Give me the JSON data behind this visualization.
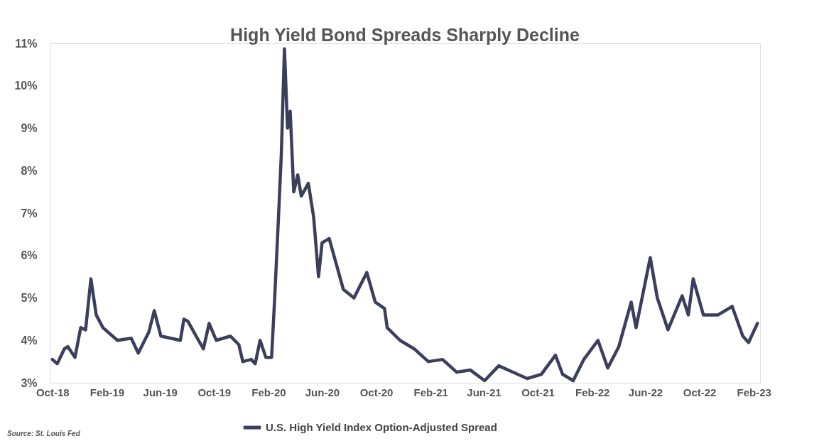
{
  "chart_data": {
    "type": "line",
    "title": "High Yield Bond Spreads Sharply Decline",
    "x": [
      "2018-10-01",
      "2018-10-12",
      "2018-10-28",
      "2018-11-05",
      "2018-11-21",
      "2018-12-04",
      "2018-12-15",
      "2018-12-27",
      "2019-01-08",
      "2019-01-23",
      "2019-02-25",
      "2019-03-28",
      "2019-04-13",
      "2019-05-07",
      "2019-05-19",
      "2019-06-03",
      "2019-07-17",
      "2019-07-25",
      "2019-08-03",
      "2019-08-27",
      "2019-09-07",
      "2019-09-20",
      "2019-10-06",
      "2019-11-07",
      "2019-11-26",
      "2019-12-05",
      "2019-12-24",
      "2020-01-02",
      "2020-01-13",
      "2020-01-26",
      "2020-02-08",
      "2020-02-15",
      "2020-02-24",
      "2020-03-01",
      "2020-03-08",
      "2020-03-15",
      "2020-03-21",
      "2020-03-29",
      "2020-04-07",
      "2020-04-15",
      "2020-05-01",
      "2020-05-13",
      "2020-05-24",
      "2020-06-01",
      "2020-06-17",
      "2020-07-03",
      "2020-07-19",
      "2020-08-12",
      "2020-09-10",
      "2020-09-29",
      "2020-10-20",
      "2020-10-26",
      "2020-11-24",
      "2020-12-26",
      "2021-01-27",
      "2021-02-28",
      "2021-04-01",
      "2021-05-02",
      "2021-06-03",
      "2021-07-05",
      "2021-08-06",
      "2021-09-07",
      "2021-10-09",
      "2021-11-10",
      "2021-11-26",
      "2021-12-20",
      "2022-01-13",
      "2022-02-14",
      "2022-03-08",
      "2022-04-02",
      "2022-04-30",
      "2022-05-11",
      "2022-06-12",
      "2022-06-28",
      "2022-07-22",
      "2022-08-23",
      "2022-09-06",
      "2022-09-17",
      "2022-10-10",
      "2022-11-12",
      "2022-12-14",
      "2023-01-07",
      "2023-01-20",
      "2023-02-09"
    ],
    "series": [
      {
        "name": "U.S. High Yield Index Option-Adjusted Spread",
        "color": "#3b3f5c",
        "values": [
          3.55,
          3.45,
          3.8,
          3.85,
          3.6,
          4.3,
          4.25,
          5.45,
          4.6,
          4.3,
          4.0,
          4.05,
          3.7,
          4.2,
          4.7,
          4.1,
          4.0,
          4.5,
          4.45,
          4.0,
          3.8,
          4.4,
          4.0,
          4.1,
          3.9,
          3.5,
          3.55,
          3.45,
          4.0,
          3.6,
          3.6,
          5.0,
          7.0,
          8.4,
          10.87,
          9.0,
          9.4,
          7.5,
          7.9,
          7.4,
          7.7,
          6.9,
          5.5,
          6.3,
          6.4,
          5.8,
          5.2,
          5.0,
          5.6,
          4.9,
          4.75,
          4.3,
          4.0,
          3.8,
          3.5,
          3.55,
          3.25,
          3.3,
          3.05,
          3.4,
          3.25,
          3.1,
          3.2,
          3.65,
          3.2,
          3.05,
          3.55,
          4.0,
          3.35,
          3.85,
          4.9,
          4.3,
          5.95,
          5.0,
          4.25,
          5.05,
          4.6,
          5.45,
          4.6,
          4.6,
          4.8,
          4.1,
          3.95,
          4.4
        ]
      }
    ],
    "xlim": [
      "2018-09-25",
      "2023-02-15"
    ],
    "xticks": [
      {
        "value": "2018-10-01",
        "label": "Oct-18"
      },
      {
        "value": "2019-02-01",
        "label": "Feb-19"
      },
      {
        "value": "2019-06-01",
        "label": "Jun-19"
      },
      {
        "value": "2019-10-01",
        "label": "Oct-19"
      },
      {
        "value": "2020-02-01",
        "label": "Feb-20"
      },
      {
        "value": "2020-06-01",
        "label": "Jun-20"
      },
      {
        "value": "2020-10-01",
        "label": "Oct-20"
      },
      {
        "value": "2021-02-01",
        "label": "Feb-21"
      },
      {
        "value": "2021-06-01",
        "label": "Jun-21"
      },
      {
        "value": "2021-10-01",
        "label": "Oct-21"
      },
      {
        "value": "2022-02-01",
        "label": "Feb-22"
      },
      {
        "value": "2022-06-01",
        "label": "Jun-22"
      },
      {
        "value": "2022-10-01",
        "label": "Oct-22"
      },
      {
        "value": "2023-02-01",
        "label": "Feb-23"
      }
    ],
    "ylim": [
      3,
      11
    ],
    "yticks": [
      {
        "value": 3,
        "label": "3%"
      },
      {
        "value": 4,
        "label": "4%"
      },
      {
        "value": 5,
        "label": "5%"
      },
      {
        "value": 6,
        "label": "6%"
      },
      {
        "value": 7,
        "label": "7%"
      },
      {
        "value": 8,
        "label": "8%"
      },
      {
        "value": 9,
        "label": "9%"
      },
      {
        "value": 10,
        "label": "10%"
      },
      {
        "value": 11,
        "label": "11%"
      }
    ],
    "grid": false,
    "legend": "bottom",
    "marker": "none",
    "line_style": "solid",
    "annotations": [
      "Source: St. Louis Fed"
    ]
  }
}
